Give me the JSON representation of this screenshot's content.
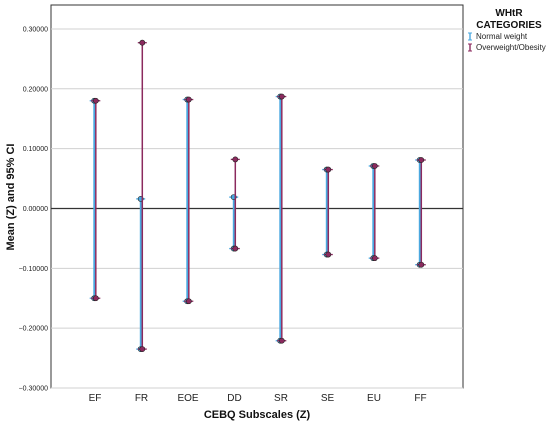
{
  "chart_data": {
    "type": "errorbar",
    "xlabel": "CEBQ Subscales (Z)",
    "ylabel": "Mean (Z) and 95% CI",
    "ylim": [
      -0.3,
      0.34
    ],
    "yticks": [
      0.3,
      0.2,
      0.1,
      0.0,
      -0.1,
      -0.2,
      -0.3
    ],
    "ytick_labels": [
      "0.30000",
      "0.20000",
      "0.10000",
      "0.00000",
      "−0.10000",
      "−0.20000",
      "−0.30000"
    ],
    "categories": [
      "EF",
      "FR",
      "EOE",
      "DD",
      "SR",
      "SE",
      "EU",
      "FF"
    ],
    "grid": true,
    "legend": {
      "title": "WHtR CATEGORIES",
      "position": "top-right"
    },
    "series": [
      {
        "name": "Normal weight",
        "color": "#4aa8e0",
        "intervals": [
          [
            -0.15,
            0.18
          ],
          [
            -0.235,
            0.016
          ],
          [
            -0.155,
            0.182
          ],
          [
            -0.067,
            0.019
          ],
          [
            -0.221,
            0.187
          ],
          [
            -0.077,
            0.065
          ],
          [
            -0.083,
            0.071
          ],
          [
            -0.094,
            0.081
          ]
        ]
      },
      {
        "name": "Overweight/Obesity",
        "color": "#8b2a5e",
        "intervals": [
          [
            -0.15,
            0.18
          ],
          [
            -0.235,
            0.277
          ],
          [
            -0.155,
            0.182
          ],
          [
            -0.067,
            0.082
          ],
          [
            -0.221,
            0.187
          ],
          [
            -0.077,
            0.065
          ],
          [
            -0.083,
            0.071
          ],
          [
            -0.094,
            0.081
          ]
        ]
      }
    ]
  }
}
